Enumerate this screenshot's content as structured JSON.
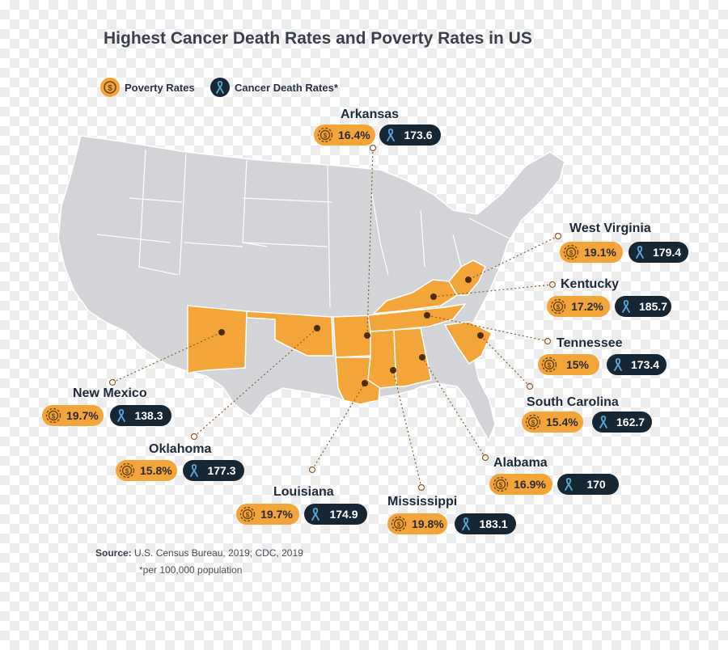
{
  "title": "Highest Cancer Death Rates and Poverty Rates in US",
  "legend": {
    "poverty_label": "Poverty Rates",
    "cancer_label": "Cancer Death Rates*",
    "poverty_icon": "dollar-coin-icon",
    "cancer_icon": "ribbon-icon"
  },
  "colors": {
    "highlight": "#f3a53a",
    "base_state": "#d3d4d8",
    "badge_dark": "#162633",
    "leader": "#8a5a2a"
  },
  "states": [
    {
      "name": "Arkansas",
      "poverty": "16.4%",
      "cancer": "173.6"
    },
    {
      "name": "West Virginia",
      "poverty": "19.1%",
      "cancer": "179.4"
    },
    {
      "name": "Kentucky",
      "poverty": "17.2%",
      "cancer": "185.7"
    },
    {
      "name": "Tennessee",
      "poverty": "15%",
      "cancer": "173.4"
    },
    {
      "name": "South Carolina",
      "poverty": "15.4%",
      "cancer": "162.7"
    },
    {
      "name": "Alabama",
      "poverty": "16.9%",
      "cancer": "170"
    },
    {
      "name": "Mississippi",
      "poverty": "19.8%",
      "cancer": "183.1"
    },
    {
      "name": "Louisiana",
      "poverty": "19.7%",
      "cancer": "174.9"
    },
    {
      "name": "Oklahoma",
      "poverty": "15.8%",
      "cancer": "177.3"
    },
    {
      "name": "New Mexico",
      "poverty": "19.7%",
      "cancer": "138.3"
    }
  ],
  "source_label": "Source:",
  "source_text": " U.S. Census Bureau, 2019; CDC, 2019",
  "note": "*per 100,000 population"
}
